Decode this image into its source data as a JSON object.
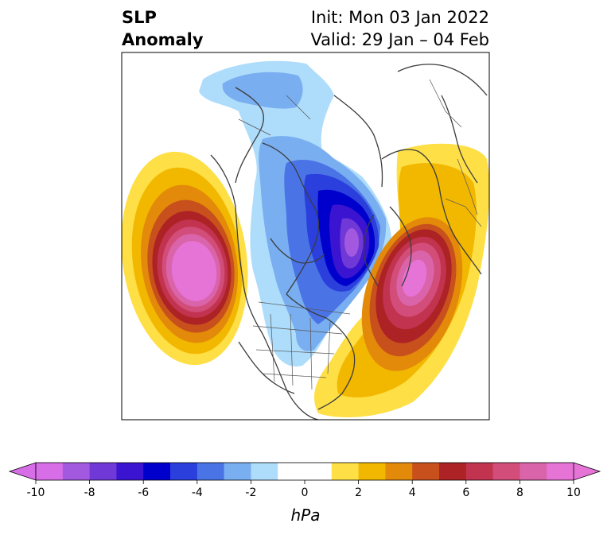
{
  "title": {
    "left_line1": "SLP",
    "left_line2": "Anomaly",
    "right_line1": "Init: Mon 03 Jan 2022",
    "right_line2": "Valid: 29 Jan – 04 Feb"
  },
  "colorbar": {
    "unit": "hPa",
    "tick_labels": [
      "-10",
      "-8",
      "-6",
      "-4",
      "-2",
      "0",
      "2",
      "4",
      "6",
      "8",
      "10"
    ],
    "levels": [
      -10,
      -9,
      -8,
      -7,
      -6,
      -5,
      -4,
      -3,
      -2,
      -1,
      1,
      2,
      3,
      4,
      5,
      6,
      7,
      8,
      9,
      10
    ],
    "under_color": "#d76ee8",
    "over_color": "#e673d6",
    "colors": [
      "#d76ee8",
      "#a259e0",
      "#7138d8",
      "#3a14d0",
      "#0000cd",
      "#2a3fdc",
      "#4a74e6",
      "#79aef0",
      "#aedcfb",
      "#ffffff",
      "#fedf46",
      "#f2b800",
      "#e38a0a",
      "#c8501c",
      "#ad2325",
      "#c23350",
      "#d24d79",
      "#da64a9",
      "#e673d6"
    ]
  }
}
